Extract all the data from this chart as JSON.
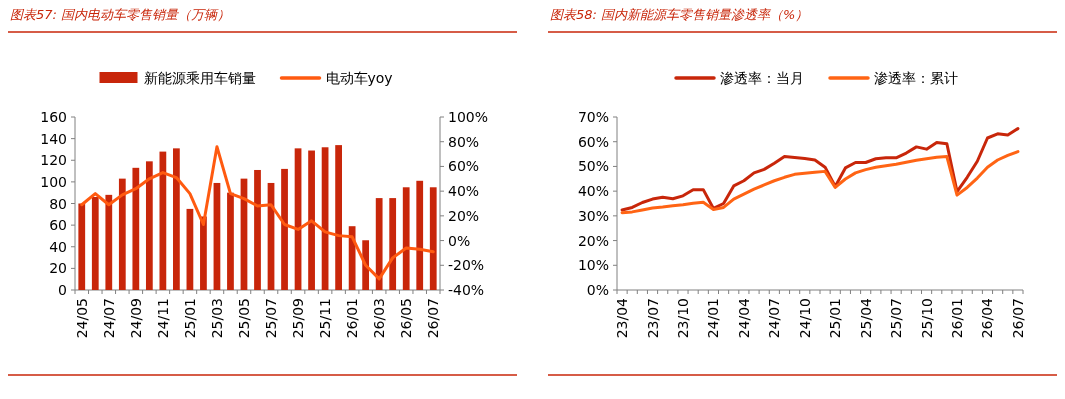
{
  "chart_data": [
    {
      "type": "bar",
      "title": "图表57: 国内电动车零售销量（万辆）",
      "legend": "top",
      "categories": [
        "24/05",
        null,
        "24/07",
        null,
        "24/09",
        null,
        "24/11",
        null,
        "25/01",
        null,
        "25/03",
        null,
        "25/05",
        null,
        "25/07",
        null,
        "25/09",
        null,
        "25/11",
        null,
        "26/01",
        null,
        "26/03",
        null,
        "26/05",
        null,
        "26/07"
      ],
      "series": [
        {
          "name": "新能源乘用车销量",
          "color": "#c8260a",
          "values": [
            80,
            86,
            88,
            103,
            113,
            119,
            128,
            131,
            75,
            68,
            99,
            90,
            103,
            111,
            99,
            112,
            131,
            129,
            132,
            134,
            59,
            46,
            85,
            85,
            95,
            101,
            95
          ]
        },
        {
          "name": "电动车yoy",
          "type": "line",
          "axis": "y2",
          "color": "#ff5a10",
          "values": [
            29,
            38,
            29,
            37,
            42,
            50,
            55,
            51,
            38,
            13,
            76,
            38,
            34,
            28,
            29,
            13,
            9,
            16,
            7,
            4,
            3,
            -20,
            -31,
            -14,
            -6,
            -7,
            -9
          ]
        }
      ],
      "ylim": [
        0,
        160
      ],
      "yticks": [
        0,
        20,
        40,
        60,
        80,
        100,
        120,
        140,
        160
      ],
      "y2lim": [
        -40,
        100
      ],
      "y2ticks": [
        {
          "value": -40,
          "label": "-40%"
        },
        {
          "value": -20,
          "label": "-20%"
        },
        {
          "value": 0,
          "label": "0%"
        },
        {
          "value": 20,
          "label": "20%"
        },
        {
          "value": 40,
          "label": "40%"
        },
        {
          "value": 60,
          "label": "60%"
        },
        {
          "value": 80,
          "label": "80%"
        },
        {
          "value": 100,
          "label": "100%"
        }
      ]
    },
    {
      "type": "line",
      "title": "图表58: 国内新能源车零售销量渗透率（%）",
      "legend": "top",
      "categories": [
        "23/04",
        null,
        null,
        "23/07",
        null,
        null,
        "23/10",
        null,
        null,
        "24/01",
        null,
        null,
        "24/04",
        null,
        null,
        "24/07",
        null,
        null,
        "24/10",
        null,
        null,
        "25/01",
        null,
        null,
        "25/04",
        null,
        null,
        "25/07",
        null,
        null,
        "25/10",
        null,
        null,
        "26/01",
        null,
        null,
        "26/04",
        null,
        null,
        "26/07"
      ],
      "series": [
        {
          "name": "渗透率：当月",
          "color": "#c8260a",
          "values": [
            32.4,
            33.4,
            35.4,
            36.8,
            37.5,
            36.9,
            38.1,
            40.6,
            40.6,
            33.0,
            35.0,
            42.1,
            44.2,
            47.4,
            48.8,
            51.3,
            54.0,
            53.6,
            53.2,
            52.6,
            49.7,
            41.9,
            49.4,
            51.6,
            51.6,
            53.1,
            53.5,
            53.5,
            55.4,
            57.9,
            57.0,
            59.7,
            59.2,
            39.8,
            45.6,
            52.1,
            61.5,
            63.2,
            62.7,
            65.3
          ]
        },
        {
          "name": "渗透率：累计",
          "color": "#ff6414",
          "values": [
            31.3,
            31.6,
            32.4,
            33.2,
            33.6,
            34.1,
            34.5,
            35.1,
            35.5,
            32.6,
            33.4,
            36.8,
            38.8,
            40.8,
            42.5,
            44.2,
            45.6,
            46.8,
            47.2,
            47.6,
            48.0,
            41.5,
            44.9,
            47.4,
            48.7,
            49.7,
            50.3,
            50.9,
            51.7,
            52.5,
            53.1,
            53.7,
            54.0,
            38.4,
            41.5,
            45.3,
            49.7,
            52.6,
            54.5,
            56.0
          ]
        }
      ],
      "ylim": [
        0,
        70
      ],
      "yticks": [
        {
          "value": 0,
          "label": "0%"
        },
        {
          "value": 10,
          "label": "10%"
        },
        {
          "value": 20,
          "label": "20%"
        },
        {
          "value": 30,
          "label": "30%"
        },
        {
          "value": 40,
          "label": "40%"
        },
        {
          "value": 50,
          "label": "50%"
        },
        {
          "value": 60,
          "label": "60%"
        },
        {
          "value": 70,
          "label": "70%"
        }
      ]
    }
  ]
}
